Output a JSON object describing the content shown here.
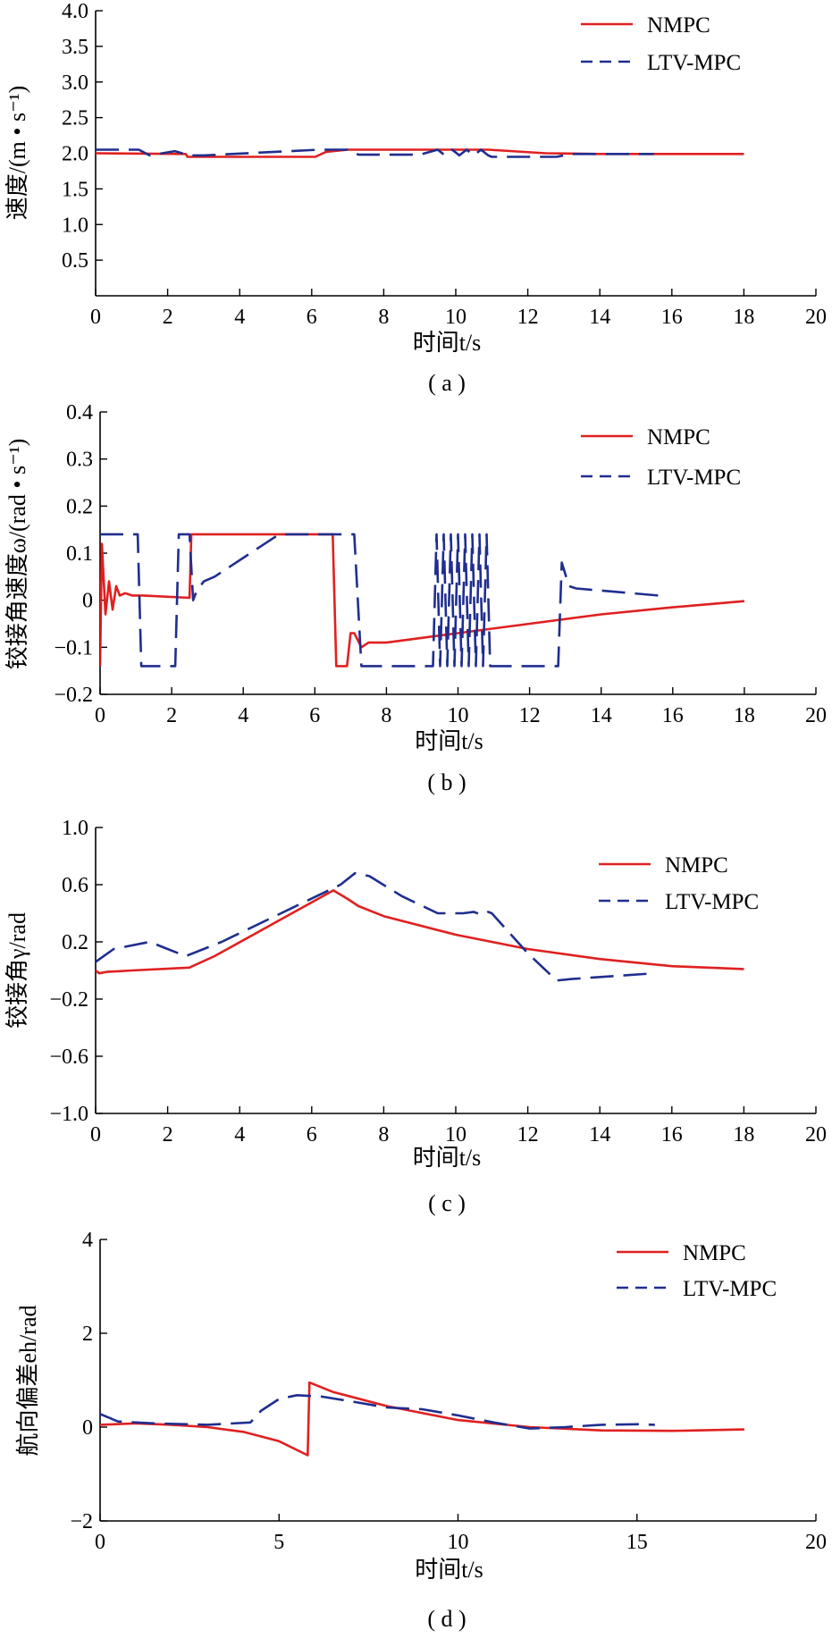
{
  "chart_data": [
    {
      "type": "line",
      "panel": "a",
      "caption": "( a )",
      "xlabel": "时间t/s",
      "ylabel": "速度/(m • s⁻¹)",
      "xlim": [
        0,
        20
      ],
      "ylim": [
        0,
        4
      ],
      "xticks": [
        0,
        2,
        4,
        6,
        8,
        10,
        12,
        14,
        16,
        18,
        20
      ],
      "yticks": [
        0.5,
        1.0,
        1.5,
        2.0,
        2.5,
        3.0,
        3.5,
        4.0
      ],
      "xtick_labels": [
        "0",
        "2",
        "4",
        "6",
        "8",
        "10",
        "12",
        "14",
        "16",
        "18",
        "20"
      ],
      "ytick_labels": [
        "0.5",
        "1.0",
        "1.5",
        "2.0",
        "2.5",
        "3.0",
        "3.5",
        "4.0"
      ],
      "grid": false,
      "legend": "top-right",
      "series": [
        {
          "name": "NMPC",
          "color": "#e02020",
          "style": "solid",
          "x": [
            0,
            2.5,
            2.55,
            6.1,
            6.4,
            7.0,
            10.0,
            10.9,
            12.5,
            14,
            16,
            18
          ],
          "y": [
            2.0,
            1.99,
            1.95,
            1.95,
            2.02,
            2.05,
            2.05,
            2.05,
            2.0,
            1.99,
            1.99,
            1.99
          ]
        },
        {
          "name": "LTV-MPC",
          "color": "#1f2e8f",
          "style": "dashed",
          "x": [
            0,
            1.2,
            1.5,
            2.2,
            2.6,
            3.0,
            6.2,
            7.0,
            7.3,
            9.0,
            9.5,
            9.7,
            9.9,
            10.1,
            10.3,
            10.5,
            10.7,
            10.9,
            11.0,
            12.8,
            13.2,
            15.5
          ],
          "y": [
            2.05,
            2.05,
            1.97,
            2.03,
            1.97,
            1.97,
            2.05,
            2.05,
            1.98,
            1.98,
            2.05,
            1.97,
            2.05,
            1.97,
            2.05,
            1.97,
            2.05,
            1.97,
            1.95,
            1.95,
            1.99,
            1.99
          ]
        }
      ]
    },
    {
      "type": "line",
      "panel": "b",
      "caption": "( b )",
      "xlabel": "时间t/s",
      "ylabel": "铰接角速度ω/(rad • s⁻¹)",
      "xlim": [
        0,
        20
      ],
      "ylim": [
        -0.2,
        0.4
      ],
      "xticks": [
        0,
        2,
        4,
        6,
        8,
        10,
        12,
        14,
        16,
        18,
        20
      ],
      "yticks": [
        -0.2,
        -0.1,
        0,
        0.1,
        0.2,
        0.3,
        0.4
      ],
      "xtick_labels": [
        "0",
        "2",
        "4",
        "6",
        "8",
        "10",
        "12",
        "14",
        "16",
        "18",
        "20"
      ],
      "ytick_labels": [
        "−0.2",
        "−0.1",
        "0",
        "0.1",
        "0.2",
        "0.3",
        "0.4"
      ],
      "grid": false,
      "legend": "top-right",
      "series": [
        {
          "name": "NMPC",
          "color": "#e02020",
          "style": "solid",
          "x": [
            0,
            0.05,
            0.15,
            0.25,
            0.35,
            0.45,
            0.55,
            0.7,
            0.9,
            1.2,
            2.5,
            2.55,
            6.5,
            6.6,
            6.9,
            7.0,
            7.1,
            7.3,
            7.5,
            8,
            10,
            12,
            14,
            16,
            18
          ],
          "y": [
            -0.14,
            0.12,
            -0.03,
            0.04,
            -0.02,
            0.03,
            0.01,
            0.015,
            0.01,
            0.01,
            0.005,
            0.14,
            0.14,
            -0.14,
            -0.14,
            -0.07,
            -0.07,
            -0.1,
            -0.09,
            -0.09,
            -0.07,
            -0.05,
            -0.03,
            -0.015,
            -0.002
          ]
        },
        {
          "name": "LTV-MPC",
          "color": "#1f2e8f",
          "style": "dashed",
          "x": [
            0,
            1.05,
            1.15,
            2.1,
            2.2,
            2.5,
            2.6,
            2.7,
            2.9,
            3.2,
            5.0,
            7.1,
            7.3,
            9.3,
            9.4,
            9.5,
            9.6,
            9.7,
            9.8,
            9.9,
            10.0,
            10.1,
            10.2,
            10.3,
            10.4,
            10.5,
            10.6,
            10.7,
            10.8,
            10.9,
            12.8,
            12.9,
            13.1,
            13.3,
            15.6
          ],
          "y": [
            0.14,
            0.14,
            -0.14,
            -0.14,
            0.14,
            0.14,
            0.0,
            0.02,
            0.04,
            0.05,
            0.14,
            0.14,
            -0.14,
            -0.14,
            0.14,
            -0.14,
            0.14,
            -0.14,
            0.14,
            -0.14,
            0.14,
            -0.14,
            0.14,
            -0.14,
            0.14,
            -0.14,
            0.14,
            -0.14,
            0.14,
            -0.14,
            -0.14,
            0.08,
            0.03,
            0.025,
            0.01
          ]
        }
      ]
    },
    {
      "type": "line",
      "panel": "c",
      "caption": "( c )",
      "xlabel": "时间t/s",
      "ylabel": "铰接角γ/rad",
      "xlim": [
        0,
        20
      ],
      "ylim": [
        -1.0,
        1.0
      ],
      "xticks": [
        0,
        2,
        4,
        6,
        8,
        10,
        12,
        14,
        16,
        18,
        20
      ],
      "yticks": [
        -1.0,
        -0.6,
        -0.2,
        0.2,
        0.6,
        1.0
      ],
      "xtick_labels": [
        "0",
        "2",
        "4",
        "6",
        "8",
        "10",
        "12",
        "14",
        "16",
        "18",
        "20"
      ],
      "ytick_labels": [
        "−1.0",
        "−0.6",
        "−0.2",
        "0.2",
        "0.6",
        "1.0"
      ],
      "grid": false,
      "legend": "top-right",
      "series": [
        {
          "name": "NMPC",
          "color": "#e02020",
          "style": "solid",
          "x": [
            0,
            0.1,
            0.3,
            1,
            2.6,
            3.3,
            6.6,
            7.0,
            7.3,
            8,
            10,
            12,
            14,
            16,
            18
          ],
          "y": [
            0.0,
            -0.02,
            -0.01,
            0.0,
            0.02,
            0.1,
            0.56,
            0.5,
            0.45,
            0.38,
            0.25,
            0.15,
            0.08,
            0.03,
            0.01
          ]
        },
        {
          "name": "LTV-MPC",
          "color": "#1f2e8f",
          "style": "dashed",
          "x": [
            0,
            0.5,
            1.5,
            2.0,
            2.2,
            2.5,
            3.5,
            6.8,
            7.2,
            7.6,
            8.5,
            9.5,
            10.2,
            10.5,
            10.7,
            10.9,
            11.0,
            12.0,
            12.8,
            13.2,
            15.5
          ],
          "y": [
            0.06,
            0.15,
            0.2,
            0.15,
            0.13,
            0.1,
            0.2,
            0.6,
            0.68,
            0.66,
            0.52,
            0.4,
            0.4,
            0.41,
            0.39,
            0.41,
            0.4,
            0.12,
            -0.07,
            -0.06,
            -0.02
          ]
        }
      ]
    },
    {
      "type": "line",
      "panel": "d",
      "caption": "( d )",
      "xlabel": "时间t/s",
      "ylabel": "航向偏差eh/rad",
      "xlim": [
        0,
        20
      ],
      "ylim": [
        -2,
        4
      ],
      "xticks": [
        0,
        5,
        10,
        15,
        20
      ],
      "yticks": [
        -2,
        0,
        2,
        4
      ],
      "xtick_labels": [
        "0",
        "5",
        "10",
        "15",
        "20"
      ],
      "ytick_labels": [
        "−2",
        "0",
        "2",
        "4"
      ],
      "grid": false,
      "legend": "top-right",
      "series": [
        {
          "name": "NMPC",
          "color": "#e02020",
          "style": "solid",
          "x": [
            0,
            1,
            2,
            3,
            4,
            5,
            5.8,
            5.85,
            6.5,
            8,
            10,
            12,
            14,
            16,
            18
          ],
          "y": [
            0.05,
            0.08,
            0.05,
            0.0,
            -0.1,
            -0.3,
            -0.6,
            0.95,
            0.75,
            0.45,
            0.15,
            0.0,
            -0.07,
            -0.08,
            -0.05
          ]
        },
        {
          "name": "LTV-MPC",
          "color": "#1f2e8f",
          "style": "dashed",
          "x": [
            0,
            0.5,
            1.5,
            3,
            4.2,
            4.5,
            5,
            5.5,
            6.2,
            7,
            8,
            9,
            10,
            11,
            12,
            13,
            14,
            15,
            15.5
          ],
          "y": [
            0.28,
            0.12,
            0.08,
            0.05,
            0.1,
            0.35,
            0.6,
            0.68,
            0.65,
            0.55,
            0.42,
            0.38,
            0.25,
            0.1,
            -0.03,
            0.0,
            0.05,
            0.06,
            0.05
          ]
        }
      ]
    }
  ]
}
